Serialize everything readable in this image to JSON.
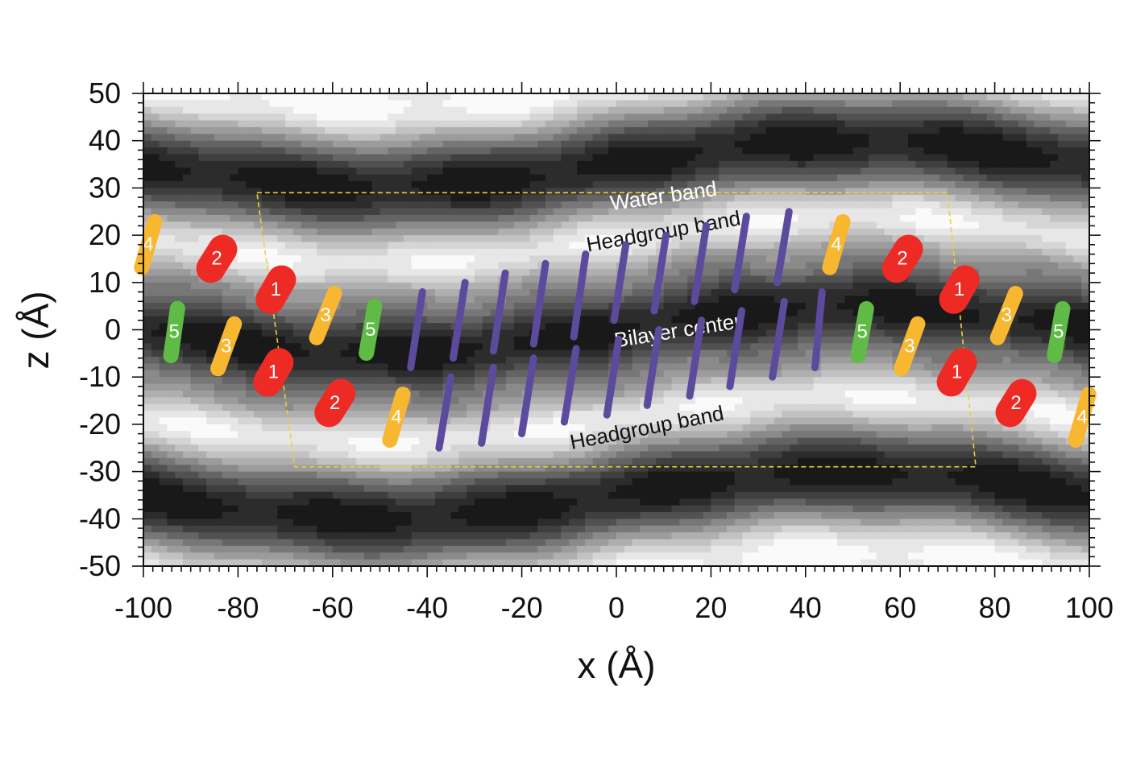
{
  "chart_data": {
    "type": "heatmap",
    "title": "",
    "xlabel": "x (Å)",
    "ylabel": "z (Å)",
    "xlim": [
      -100,
      100
    ],
    "ylim": [
      -50,
      50
    ],
    "x_ticks": [
      "-100",
      "-80",
      "-60",
      "-40",
      "-20",
      "0",
      "20",
      "40",
      "60",
      "80",
      "100"
    ],
    "y_ticks": [
      "50",
      "40",
      "30",
      "20",
      "10",
      "0",
      "-10",
      "-20",
      "-30",
      "-40",
      "-50"
    ],
    "grid": false,
    "colormap": [
      "#000000",
      "#ffffff"
    ],
    "band_annotations": [
      {
        "text": "Water band",
        "x": 10,
        "z": 28,
        "angle": -8,
        "color": "#ffffff"
      },
      {
        "text": "Headgroup band",
        "x": 10,
        "z": 20.5,
        "angle": -10,
        "color": "#111111"
      },
      {
        "text": "Bilayer center",
        "x": 13,
        "z": -0.5,
        "angle": -9,
        "color": "#ffffff"
      },
      {
        "text": "Headgroup band",
        "x": 6.5,
        "z": -21,
        "angle": -11,
        "color": "#111111"
      }
    ],
    "unit_cell": {
      "corners": [
        [
          -76,
          29
        ],
        [
          70,
          29
        ],
        [
          76,
          -29
        ],
        [
          -68,
          -29
        ]
      ],
      "color": "#e8d23a",
      "style": "dashed"
    },
    "lipid_markers": [
      {
        "label": "4",
        "x": -99,
        "z": 18,
        "angle": 16,
        "color": "#f7b731"
      },
      {
        "label": "2",
        "x": -84.5,
        "z": 15,
        "angle": 32,
        "color": "#ee2a24"
      },
      {
        "label": "1",
        "x": -72,
        "z": 8.5,
        "angle": 30,
        "color": "#ee2a24"
      },
      {
        "label": "3",
        "x": -61.5,
        "z": 3,
        "angle": 22,
        "color": "#f7b731"
      },
      {
        "label": "5",
        "x": -52,
        "z": 0,
        "angle": 10,
        "color": "#5fbb46"
      },
      {
        "label": "5",
        "x": -93.5,
        "z": -0.5,
        "angle": 8,
        "color": "#5fbb46"
      },
      {
        "label": "3",
        "x": -82.5,
        "z": -3.5,
        "angle": 20,
        "color": "#f7b731"
      },
      {
        "label": "1",
        "x": -72.5,
        "z": -9,
        "angle": 30,
        "color": "#ee2a24"
      },
      {
        "label": "2",
        "x": -59.5,
        "z": -15.5,
        "angle": 32,
        "color": "#ee2a24"
      },
      {
        "label": "4",
        "x": -46.5,
        "z": -18.5,
        "angle": 16,
        "color": "#f7b731"
      },
      {
        "label": "4",
        "x": 46.5,
        "z": 18,
        "angle": 16,
        "color": "#f7b731"
      },
      {
        "label": "2",
        "x": 60.5,
        "z": 15,
        "angle": 32,
        "color": "#ee2a24"
      },
      {
        "label": "1",
        "x": 72.5,
        "z": 8.5,
        "angle": 30,
        "color": "#ee2a24"
      },
      {
        "label": "3",
        "x": 82.5,
        "z": 3,
        "angle": 22,
        "color": "#f7b731"
      },
      {
        "label": "5",
        "x": 93.5,
        "z": -0.5,
        "angle": 10,
        "color": "#5fbb46"
      },
      {
        "label": "5",
        "x": 52,
        "z": -0.5,
        "angle": 10,
        "color": "#5fbb46"
      },
      {
        "label": "3",
        "x": 62,
        "z": -3.5,
        "angle": 20,
        "color": "#f7b731"
      },
      {
        "label": "1",
        "x": 72,
        "z": -9,
        "angle": 30,
        "color": "#ee2a24"
      },
      {
        "label": "2",
        "x": 84.5,
        "z": -15.5,
        "angle": 32,
        "color": "#ee2a24"
      },
      {
        "label": "4",
        "x": 98.5,
        "z": -18.5,
        "angle": 16,
        "color": "#f7b731"
      }
    ],
    "tail_segments": {
      "color": "#5c4b9c",
      "upper": [
        {
          "x1": -43.5,
          "z1": -8,
          "x2": -41,
          "z2": 8
        },
        {
          "x1": -34.5,
          "z1": -6,
          "x2": -32,
          "z2": 10
        },
        {
          "x1": -26,
          "z1": -4.5,
          "x2": -23.5,
          "z2": 12
        },
        {
          "x1": -17.5,
          "z1": -3,
          "x2": -15,
          "z2": 14
        },
        {
          "x1": -9,
          "z1": -1.5,
          "x2": -6.5,
          "z2": 16
        },
        {
          "x1": -0.5,
          "z1": 2,
          "x2": 2,
          "z2": 18
        },
        {
          "x1": 8,
          "z1": 4,
          "x2": 10.5,
          "z2": 20
        },
        {
          "x1": 16.5,
          "z1": 6,
          "x2": 19,
          "z2": 22
        },
        {
          "x1": 25,
          "z1": 8.5,
          "x2": 27.5,
          "z2": 24
        },
        {
          "x1": 34,
          "z1": 10,
          "x2": 36.5,
          "z2": 25
        }
      ],
      "lower": [
        {
          "x1": -37.5,
          "z1": -25,
          "x2": -35,
          "z2": -10
        },
        {
          "x1": -28.5,
          "z1": -24,
          "x2": -26,
          "z2": -8
        },
        {
          "x1": -20,
          "z1": -22,
          "x2": -17.5,
          "z2": -6
        },
        {
          "x1": -11,
          "z1": -19.5,
          "x2": -8.5,
          "z2": -4
        },
        {
          "x1": -2,
          "z1": -18,
          "x2": 0.5,
          "z2": -2
        },
        {
          "x1": 6.5,
          "z1": -16,
          "x2": 9,
          "z2": 0
        },
        {
          "x1": 15.5,
          "z1": -14,
          "x2": 18,
          "z2": 2
        },
        {
          "x1": 24,
          "z1": -12,
          "x2": 26.5,
          "z2": 4
        },
        {
          "x1": 33,
          "z1": -10,
          "x2": 35.5,
          "z2": 6
        },
        {
          "x1": 42,
          "z1": -8,
          "x2": 43.5,
          "z2": 8
        }
      ]
    }
  }
}
